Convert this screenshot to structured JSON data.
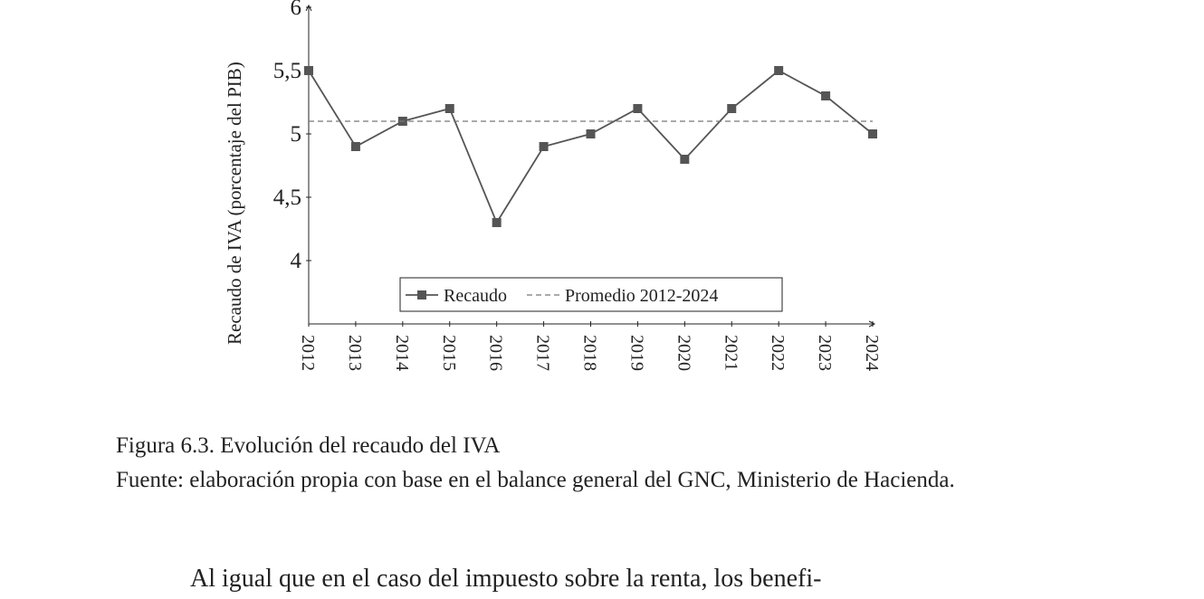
{
  "chart_data": {
    "type": "line",
    "y_label": "Recaudo de IVA (porcentaje del PIB)",
    "categories": [
      "2012",
      "2013",
      "2014",
      "2015",
      "2016",
      "2017",
      "2018",
      "2019",
      "2020",
      "2021",
      "2022",
      "2023",
      "2024"
    ],
    "series": [
      {
        "name": "Recaudo",
        "color": "#555555",
        "values": [
          5.5,
          4.9,
          5.1,
          5.2,
          4.3,
          4.9,
          5.0,
          5.2,
          4.8,
          5.2,
          5.5,
          5.3,
          5.0
        ]
      },
      {
        "name": "Promedio 2012-2024",
        "color": "#777777",
        "dashed": true,
        "values": [
          5.1,
          5.1,
          5.1,
          5.1,
          5.1,
          5.1,
          5.1,
          5.1,
          5.1,
          5.1,
          5.1,
          5.1,
          5.1
        ]
      }
    ],
    "ylim": [
      3.5,
      6
    ],
    "yticks": [
      4,
      {
        "value": 4.5,
        "label": "4,5"
      },
      5,
      {
        "value": 5.5,
        "label": "5,5"
      },
      6
    ]
  },
  "caption": {
    "title": "Figura 6.3. Evolución del recaudo del IVA",
    "source": "Fuente: elaboración propia con base en el balance general del GNC, Ministerio de Hacienda."
  },
  "body": {
    "paragraph": "Al igual que en el caso del impuesto sobre la renta, los benefi-"
  }
}
